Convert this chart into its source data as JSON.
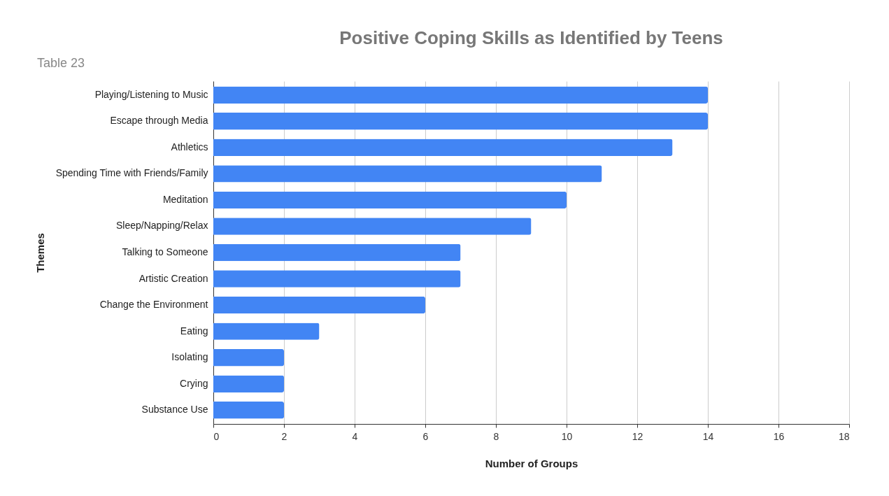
{
  "chart_data": {
    "type": "bar",
    "orientation": "horizontal",
    "title": "Positive Coping Skills as Identified by Teens",
    "subtitle": "Table 23",
    "xlabel": "Number of Groups",
    "ylabel": "Themes",
    "categories": [
      "Playing/Listening to Music",
      "Escape through Media",
      "Athletics",
      "Spending Time with Friends/Family",
      "Meditation",
      "Sleep/Napping/Relax",
      "Talking to Someone",
      "Artistic Creation",
      "Change the Environment",
      "Eating",
      "Isolating",
      "Crying",
      "Substance Use"
    ],
    "values": [
      14,
      14,
      13,
      11,
      10,
      9,
      7,
      7,
      6,
      3,
      2,
      2,
      2
    ],
    "color": "#4285f4",
    "xlim": [
      0,
      18
    ],
    "xticks": [
      0,
      2,
      4,
      6,
      8,
      10,
      12,
      14,
      16,
      18
    ],
    "grid": "x"
  }
}
